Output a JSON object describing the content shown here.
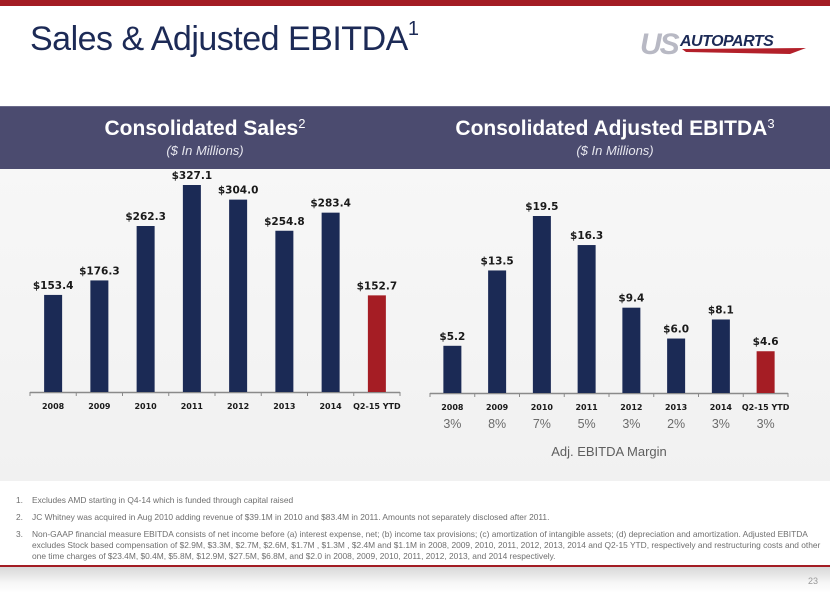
{
  "slide": {
    "title": "Sales & Adjusted EBITDA",
    "title_sup": "1",
    "logo": {
      "us": "US",
      "autoparts": "AUTOPARTS"
    },
    "page_number": "23",
    "colors": {
      "primary_bar": "#1b2a55",
      "highlight_bar": "#a51d24",
      "band": "#4b4b6f",
      "accent_red": "#a31d24"
    }
  },
  "band": {
    "left_title": "Consolidated Sales",
    "left_sup": "2",
    "left_subtitle": "($ In Millions)",
    "right_title": "Consolidated Adjusted EBITDA",
    "right_sup": "3",
    "right_subtitle": "($ In Millions)"
  },
  "chart_data": [
    {
      "type": "bar",
      "title": "Consolidated Sales",
      "subtitle": "($ In Millions)",
      "categories": [
        "2008",
        "2009",
        "2010",
        "2011",
        "2012",
        "2013",
        "2014",
        "Q2-15 YTD"
      ],
      "values": [
        153.4,
        176.3,
        262.3,
        327.1,
        304.0,
        254.8,
        283.4,
        152.7
      ],
      "labels": [
        "$153.4",
        "$176.3",
        "$262.3",
        "$327.1",
        "$304.0",
        "$254.8",
        "$283.4",
        "$152.7"
      ],
      "highlight_index": 7,
      "xlabel": "",
      "ylabel": "",
      "ylim": [
        0,
        327.1
      ],
      "grid": false
    },
    {
      "type": "bar",
      "title": "Consolidated Adjusted EBITDA",
      "subtitle": "($ In Millions)",
      "categories": [
        "2008",
        "2009",
        "2010",
        "2011",
        "2012",
        "2013",
        "2014",
        "Q2-15 YTD"
      ],
      "values": [
        5.2,
        13.5,
        19.5,
        16.3,
        9.4,
        6.0,
        8.1,
        4.6
      ],
      "labels": [
        "$5.2",
        "$13.5",
        "$19.5",
        "$16.3",
        "$9.4",
        "$6.0",
        "$8.1",
        "$4.6"
      ],
      "margins": [
        "3%",
        "8%",
        "7%",
        "5%",
        "3%",
        "2%",
        "3%",
        "3%"
      ],
      "margin_label": "Adj. EBITDA Margin",
      "highlight_index": 7,
      "xlabel": "",
      "ylabel": "",
      "ylim": [
        0,
        19.5
      ],
      "grid": false
    }
  ],
  "footnotes": [
    {
      "num": "1.",
      "text": "Excludes AMD starting in Q4-14 which is funded through capital raised"
    },
    {
      "num": "2.",
      "text": "JC Whitney was acquired in Aug 2010 adding revenue of $39.1M in 2010 and $83.4M in 2011.  Amounts not separately disclosed after 2011."
    },
    {
      "num": "3.",
      "text": "Non-GAAP financial measure EBITDA consists of net income before (a) interest expense, net; (b) income tax provisions; (c) amortization of intangible assets; (d) depreciation and amortization.  Adjusted EBITDA excludes Stock based compensation of $2.9M, $3.3M, $2.7M, $2.6M, $1.7M , $1.3M , $2.4M and $1.1M in 2008, 2009, 2010, 2011, 2012, 2013, 2014 and Q2-15 YTD, respectively and restructuring costs and other one time charges of $23.4M, $0.4M, $5.8M, $12.9M, $27.5M, $6.8M, and $2.0 in 2008, 2009, 2010, 2011, 2012, 2013, and 2014 respectively."
    }
  ]
}
